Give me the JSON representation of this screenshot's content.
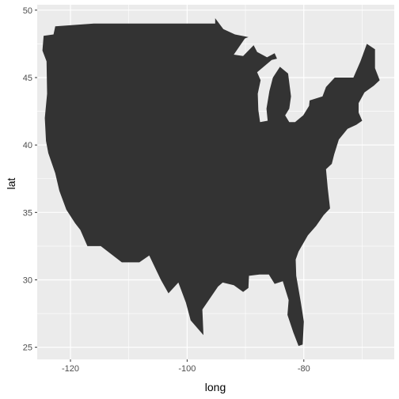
{
  "chart_data": {
    "type": "polygon",
    "xlabel": "long",
    "ylabel": "lat",
    "xlim": [
      -125.7,
      -64.5
    ],
    "ylim": [
      24.1,
      50.4
    ],
    "xticks": [
      -120,
      -100,
      -80
    ],
    "xtick_labels": [
      "-120",
      "-100",
      "-80"
    ],
    "yticks": [
      25,
      30,
      35,
      40,
      45,
      50
    ],
    "ytick_labels": [
      "25",
      "30",
      "35",
      "40",
      "45",
      "50"
    ],
    "grid": true,
    "legend": "none",
    "fill_color": "#333333",
    "panel_color": "#ebebeb",
    "grid_color": "#ffffff",
    "polygon": [
      [
        -122.6,
        48.8
      ],
      [
        -122.9,
        48.2
      ],
      [
        -124.6,
        48.1
      ],
      [
        -124.8,
        47.0
      ],
      [
        -124.1,
        46.2
      ],
      [
        -124.0,
        43.8
      ],
      [
        -124.4,
        42.0
      ],
      [
        -124.2,
        40.3
      ],
      [
        -123.8,
        39.4
      ],
      [
        -122.6,
        37.9
      ],
      [
        -121.9,
        36.6
      ],
      [
        -120.7,
        35.2
      ],
      [
        -119.2,
        34.2
      ],
      [
        -118.3,
        33.7
      ],
      [
        -117.1,
        32.5
      ],
      [
        -114.8,
        32.5
      ],
      [
        -111.2,
        31.3
      ],
      [
        -108.2,
        31.3
      ],
      [
        -106.5,
        31.8
      ],
      [
        -104.5,
        30.0
      ],
      [
        -103.2,
        29.0
      ],
      [
        -101.5,
        29.8
      ],
      [
        -100.2,
        28.3
      ],
      [
        -99.4,
        27.0
      ],
      [
        -97.2,
        25.9
      ],
      [
        -97.4,
        27.8
      ],
      [
        -94.7,
        29.5
      ],
      [
        -93.9,
        29.8
      ],
      [
        -92.0,
        29.6
      ],
      [
        -90.4,
        29.1
      ],
      [
        -89.5,
        29.4
      ],
      [
        -89.4,
        30.3
      ],
      [
        -87.6,
        30.4
      ],
      [
        -86.0,
        30.4
      ],
      [
        -85.0,
        29.7
      ],
      [
        -83.6,
        29.9
      ],
      [
        -82.6,
        28.5
      ],
      [
        -82.8,
        27.4
      ],
      [
        -81.8,
        26.1
      ],
      [
        -80.9,
        25.1
      ],
      [
        -80.2,
        25.2
      ],
      [
        -80.0,
        26.9
      ],
      [
        -80.5,
        28.3
      ],
      [
        -81.3,
        30.3
      ],
      [
        -81.4,
        31.5
      ],
      [
        -80.9,
        32.1
      ],
      [
        -79.3,
        33.3
      ],
      [
        -77.9,
        34.0
      ],
      [
        -76.6,
        34.8
      ],
      [
        -75.5,
        35.3
      ],
      [
        -75.9,
        36.8
      ],
      [
        -76.2,
        38.2
      ],
      [
        -75.2,
        38.6
      ],
      [
        -74.8,
        39.3
      ],
      [
        -74.0,
        40.4
      ],
      [
        -72.5,
        41.2
      ],
      [
        -71.0,
        41.5
      ],
      [
        -70.0,
        41.8
      ],
      [
        -70.6,
        42.4
      ],
      [
        -70.6,
        43.1
      ],
      [
        -69.6,
        43.9
      ],
      [
        -68.0,
        44.4
      ],
      [
        -67.0,
        44.8
      ],
      [
        -67.8,
        45.7
      ],
      [
        -67.8,
        47.1
      ],
      [
        -69.2,
        47.5
      ],
      [
        -70.3,
        46.2
      ],
      [
        -71.5,
        45.0
      ],
      [
        -73.3,
        45.0
      ],
      [
        -74.7,
        45.0
      ],
      [
        -76.2,
        44.3
      ],
      [
        -76.8,
        43.6
      ],
      [
        -79.0,
        43.3
      ],
      [
        -79.1,
        42.9
      ],
      [
        -80.1,
        42.2
      ],
      [
        -81.5,
        41.7
      ],
      [
        -82.5,
        41.7
      ],
      [
        -83.2,
        42.2
      ],
      [
        -82.5,
        42.7
      ],
      [
        -82.2,
        43.6
      ],
      [
        -82.7,
        45.3
      ],
      [
        -84.1,
        45.8
      ],
      [
        -85.3,
        45.0
      ],
      [
        -85.9,
        44.0
      ],
      [
        -86.4,
        42.7
      ],
      [
        -86.2,
        41.8
      ],
      [
        -87.5,
        41.7
      ],
      [
        -87.8,
        42.6
      ],
      [
        -87.9,
        43.8
      ],
      [
        -87.4,
        44.8
      ],
      [
        -88.0,
        45.4
      ],
      [
        -85.5,
        46.3
      ],
      [
        -84.6,
        46.4
      ],
      [
        -85.0,
        46.8
      ],
      [
        -86.3,
        46.5
      ],
      [
        -88.0,
        46.9
      ],
      [
        -88.6,
        47.4
      ],
      [
        -90.4,
        46.6
      ],
      [
        -92.0,
        46.7
      ],
      [
        -90.1,
        47.9
      ],
      [
        -89.5,
        48.0
      ],
      [
        -91.8,
        48.2
      ],
      [
        -93.8,
        48.6
      ],
      [
        -95.2,
        49.4
      ],
      [
        -95.2,
        49.0
      ],
      [
        -99.0,
        49.0
      ],
      [
        -104.0,
        49.0
      ],
      [
        -110.0,
        49.0
      ],
      [
        -116.0,
        49.0
      ],
      [
        -122.6,
        48.8
      ]
    ]
  }
}
